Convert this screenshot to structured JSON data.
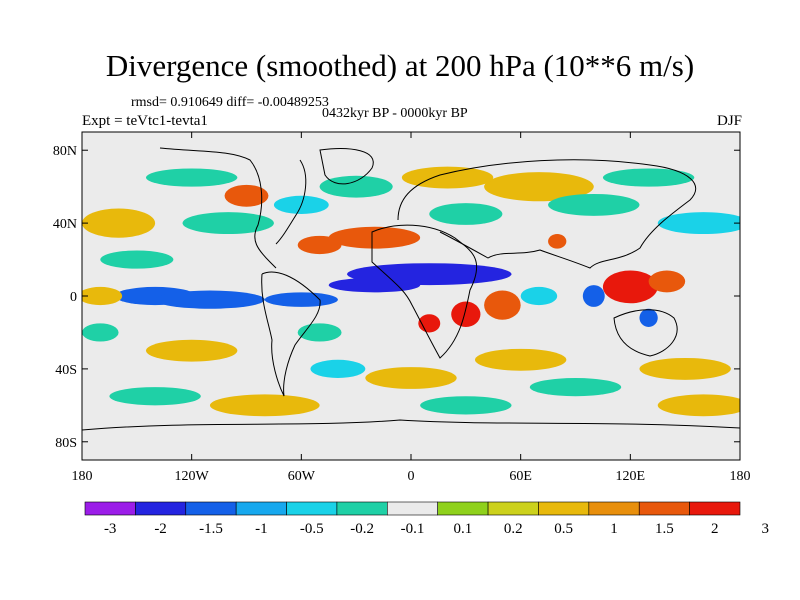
{
  "title": "Divergence (smoothed) at 200 hPa (10**6 m/s)",
  "stats": "rmsd= 0.910649 diff= -0.00489253",
  "period": "0432kyr BP - 0000kyr BP",
  "experiment": "Expt = teVtc1-tevta1",
  "season": "DJF",
  "map": {
    "lon_range": [
      -180,
      180
    ],
    "lat_range": [
      -90,
      90
    ],
    "x_ticks": [
      {
        "value": -180,
        "label": "180"
      },
      {
        "value": -120,
        "label": "120W"
      },
      {
        "value": -60,
        "label": "60W"
      },
      {
        "value": 0,
        "label": "0"
      },
      {
        "value": 60,
        "label": "60E"
      },
      {
        "value": 120,
        "label": "120E"
      },
      {
        "value": 180,
        "label": "180"
      }
    ],
    "y_ticks": [
      {
        "value": 80,
        "label": "80N"
      },
      {
        "value": 40,
        "label": "40N"
      },
      {
        "value": 0,
        "label": "0"
      },
      {
        "value": -40,
        "label": "40S"
      },
      {
        "value": -80,
        "label": "80S"
      }
    ],
    "background_color": "#ebebeb",
    "features": [
      {
        "lon": -140,
        "lat": 0,
        "rx": 22,
        "ry": 5,
        "level": 2
      },
      {
        "lon": -110,
        "lat": -2,
        "rx": 30,
        "ry": 5,
        "level": 2
      },
      {
        "lon": 10,
        "lat": 12,
        "rx": 45,
        "ry": 6,
        "level": 1
      },
      {
        "lon": -20,
        "lat": 6,
        "rx": 25,
        "ry": 4,
        "level": 1
      },
      {
        "lon": -60,
        "lat": -2,
        "rx": 20,
        "ry": 4,
        "level": 2
      },
      {
        "lon": -20,
        "lat": 32,
        "rx": 25,
        "ry": 6,
        "level": 11
      },
      {
        "lon": -50,
        "lat": 28,
        "rx": 12,
        "ry": 5,
        "level": 11
      },
      {
        "lon": -90,
        "lat": 55,
        "rx": 12,
        "ry": 6,
        "level": 11
      },
      {
        "lon": 10,
        "lat": -15,
        "rx": 6,
        "ry": 5,
        "level": 12
      },
      {
        "lon": 30,
        "lat": -10,
        "rx": 8,
        "ry": 7,
        "level": 12
      },
      {
        "lon": 50,
        "lat": -5,
        "rx": 10,
        "ry": 8,
        "level": 11
      },
      {
        "lon": 80,
        "lat": 30,
        "rx": 5,
        "ry": 4,
        "level": 11
      },
      {
        "lon": 120,
        "lat": 5,
        "rx": 15,
        "ry": 9,
        "level": 12
      },
      {
        "lon": 140,
        "lat": 8,
        "rx": 10,
        "ry": 6,
        "level": 11
      },
      {
        "lon": 100,
        "lat": 0,
        "rx": 6,
        "ry": 6,
        "level": 2
      },
      {
        "lon": 130,
        "lat": -12,
        "rx": 5,
        "ry": 5,
        "level": 2
      },
      {
        "lon": -160,
        "lat": 40,
        "rx": 20,
        "ry": 8,
        "level": 9
      },
      {
        "lon": 70,
        "lat": 60,
        "rx": 30,
        "ry": 8,
        "level": 9
      },
      {
        "lon": -120,
        "lat": -30,
        "rx": 25,
        "ry": 6,
        "level": 9
      },
      {
        "lon": 0,
        "lat": -45,
        "rx": 25,
        "ry": 6,
        "level": 9
      },
      {
        "lon": 60,
        "lat": -35,
        "rx": 25,
        "ry": 6,
        "level": 9
      },
      {
        "lon": 150,
        "lat": -40,
        "rx": 25,
        "ry": 6,
        "level": 9
      },
      {
        "lon": -170,
        "lat": 0,
        "rx": 12,
        "ry": 5,
        "level": 9
      },
      {
        "lon": 160,
        "lat": -60,
        "rx": 25,
        "ry": 6,
        "level": 9
      },
      {
        "lon": -80,
        "lat": -60,
        "rx": 30,
        "ry": 6,
        "level": 9
      },
      {
        "lon": 20,
        "lat": 65,
        "rx": 25,
        "ry": 6,
        "level": 9
      },
      {
        "lon": -30,
        "lat": 60,
        "rx": 20,
        "ry": 6,
        "level": 5
      },
      {
        "lon": 100,
        "lat": 50,
        "rx": 25,
        "ry": 6,
        "level": 5
      },
      {
        "lon": -100,
        "lat": 40,
        "rx": 25,
        "ry": 6,
        "level": 5
      },
      {
        "lon": 30,
        "lat": 45,
        "rx": 20,
        "ry": 6,
        "level": 5
      },
      {
        "lon": -170,
        "lat": -20,
        "rx": 10,
        "ry": 5,
        "level": 5
      },
      {
        "lon": -40,
        "lat": -40,
        "rx": 15,
        "ry": 5,
        "level": 4
      },
      {
        "lon": 90,
        "lat": -50,
        "rx": 25,
        "ry": 5,
        "level": 5
      },
      {
        "lon": -140,
        "lat": -55,
        "rx": 25,
        "ry": 5,
        "level": 5
      },
      {
        "lon": 30,
        "lat": -60,
        "rx": 25,
        "ry": 5,
        "level": 5
      },
      {
        "lon": -50,
        "lat": -20,
        "rx": 12,
        "ry": 5,
        "level": 5
      },
      {
        "lon": 160,
        "lat": 40,
        "rx": 25,
        "ry": 6,
        "level": 4
      },
      {
        "lon": -60,
        "lat": 50,
        "rx": 15,
        "ry": 5,
        "level": 4
      },
      {
        "lon": -120,
        "lat": 65,
        "rx": 25,
        "ry": 5,
        "level": 5
      },
      {
        "lon": 130,
        "lat": 65,
        "rx": 25,
        "ry": 5,
        "level": 5
      },
      {
        "lon": -150,
        "lat": 20,
        "rx": 20,
        "ry": 5,
        "level": 5
      },
      {
        "lon": 70,
        "lat": 0,
        "rx": 10,
        "ry": 5,
        "level": 4
      }
    ]
  },
  "colorbar": {
    "colors": [
      "#9b1de8",
      "#2424e0",
      "#1460e8",
      "#17a8ee",
      "#1ad2e8",
      "#1fd0a6",
      "#ebebeb",
      "#8fd11c",
      "#ccd11c",
      "#e8b90c",
      "#e88f0c",
      "#e8580c",
      "#e8180c"
    ],
    "labels": [
      "-3",
      "-2",
      "-1.5",
      "-1",
      "-0.5",
      "-0.2",
      "-0.1",
      "0.1",
      "0.2",
      "0.5",
      "1",
      "1.5",
      "2",
      "3"
    ]
  }
}
